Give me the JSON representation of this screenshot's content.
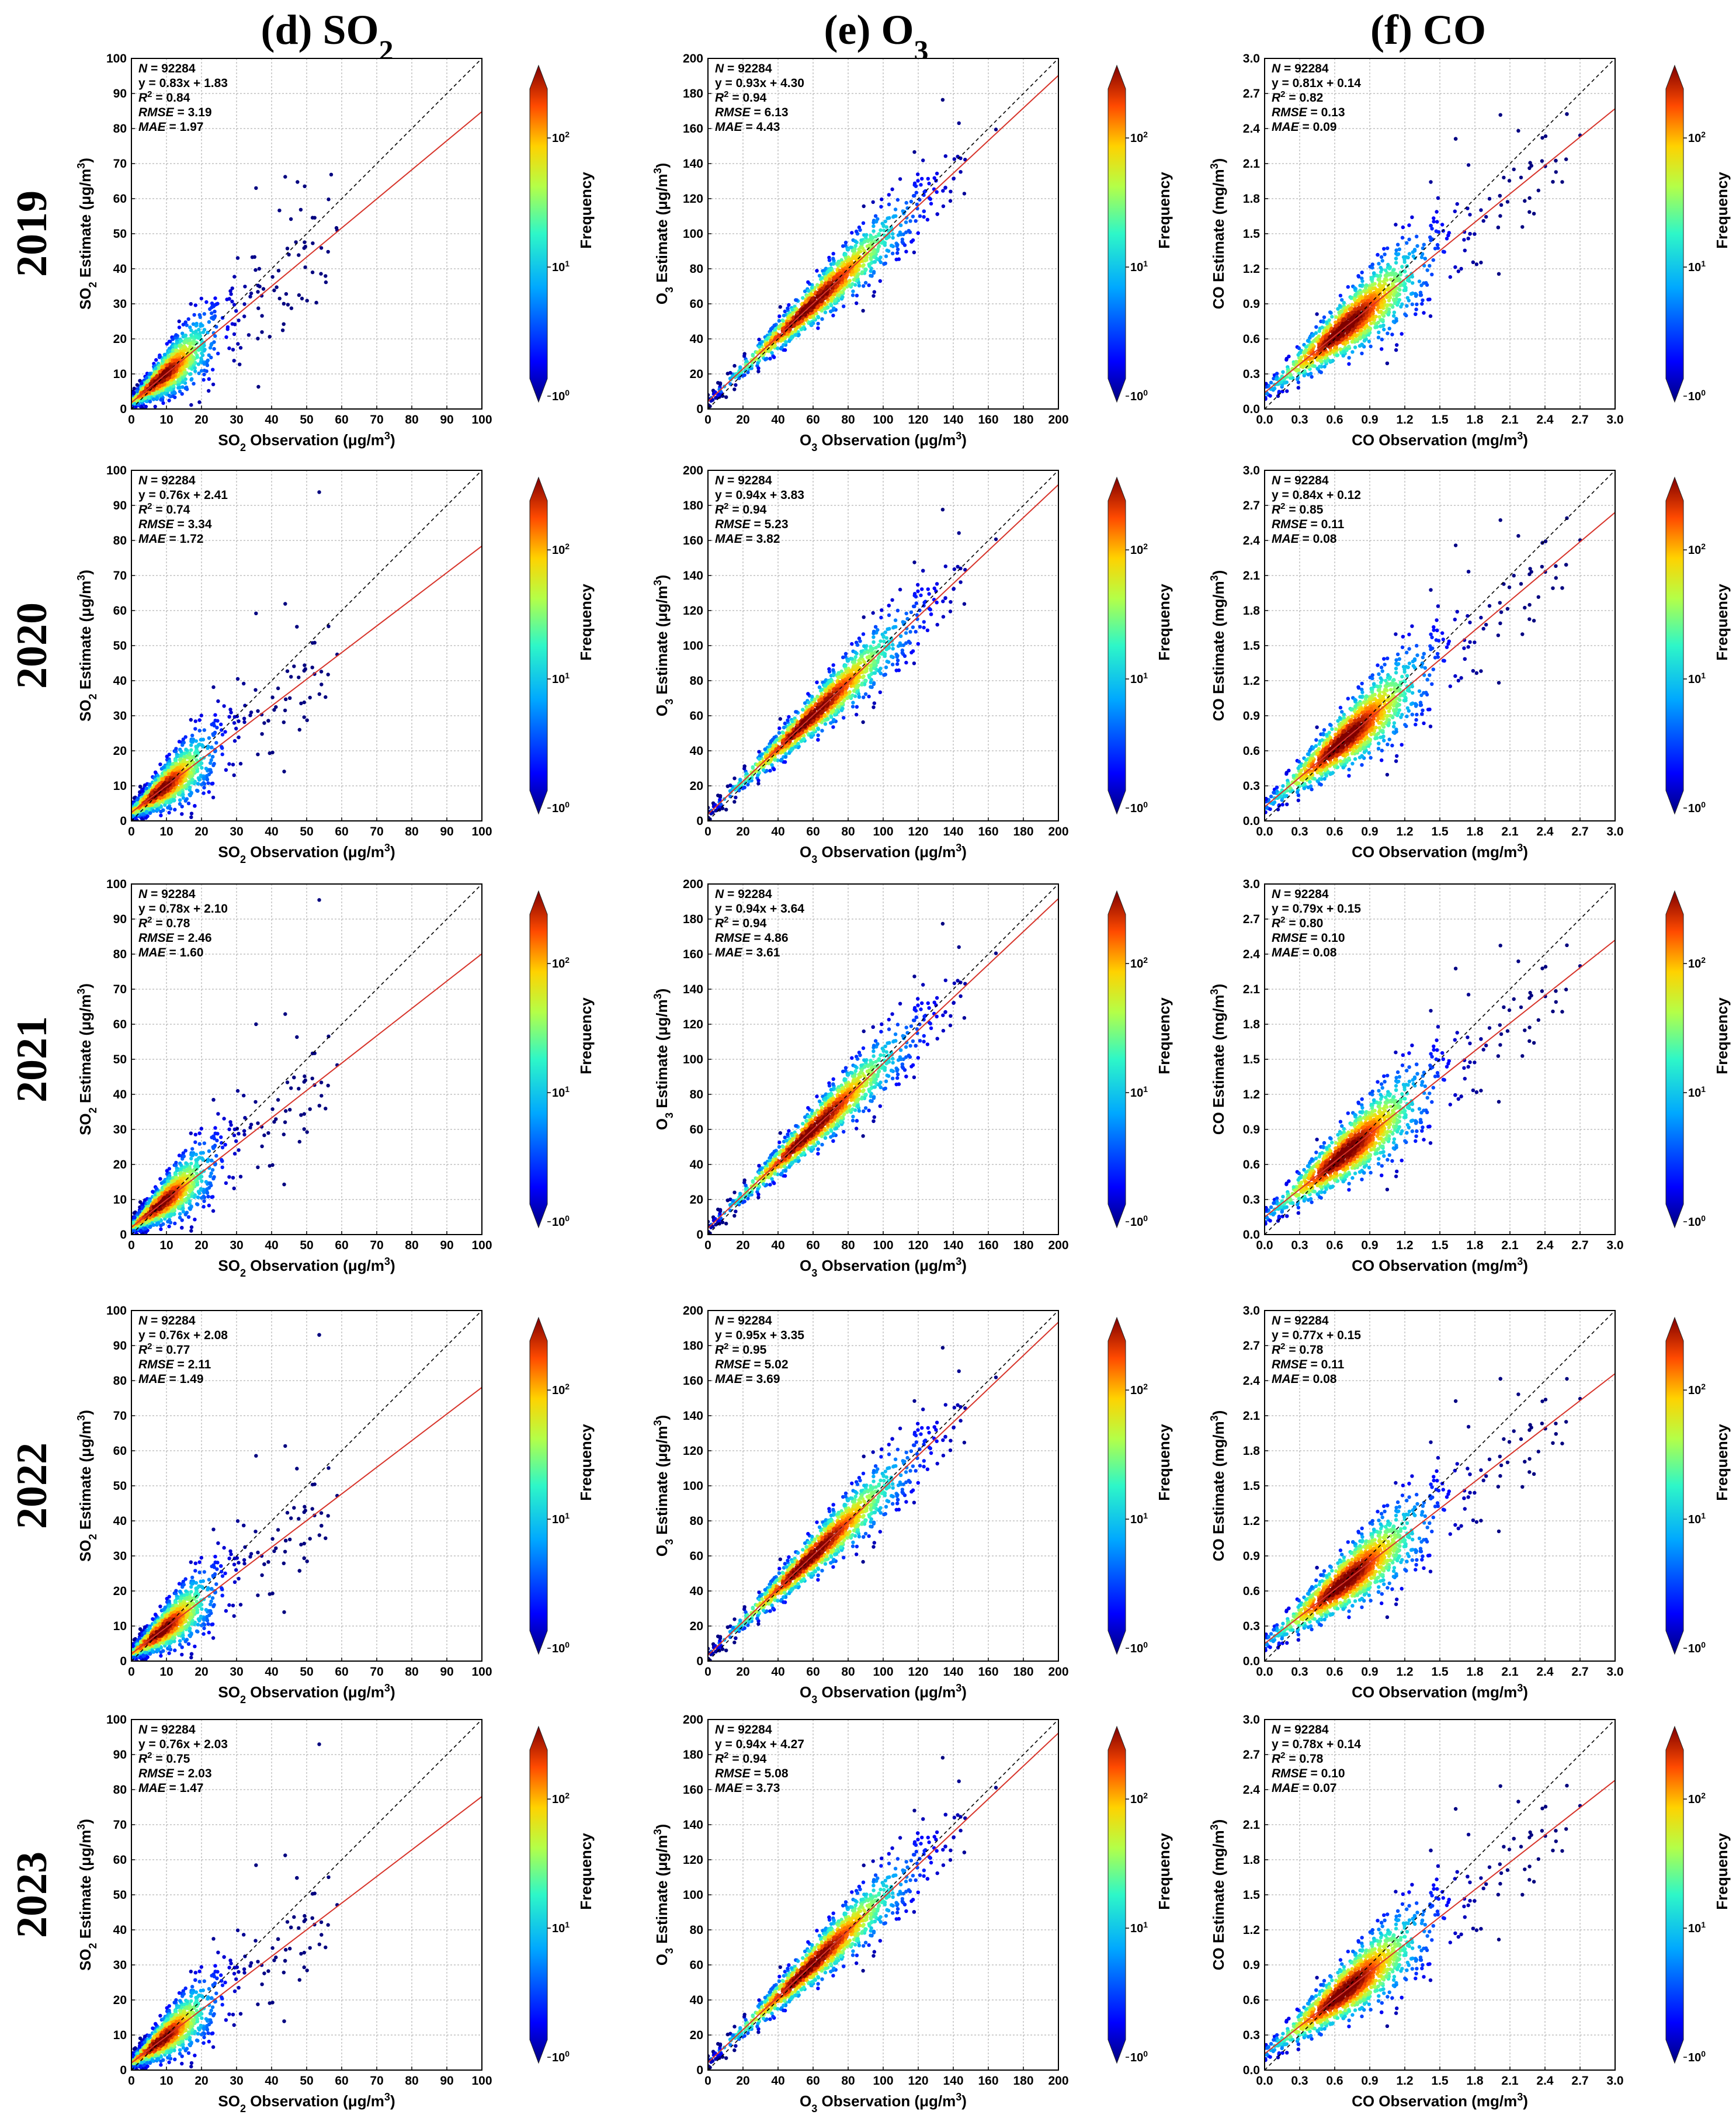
{
  "figure": {
    "column_titles": [
      {
        "prefix": "(d) SO",
        "sub": "2"
      },
      {
        "prefix": "(e) O",
        "sub": "3"
      },
      {
        "prefix": "(f) CO",
        "sub": ""
      }
    ],
    "years": [
      "2019",
      "2020",
      "2021",
      "2022",
      "2023"
    ],
    "colorbar_label": "Frequency",
    "colorbar_ticks": [
      {
        "base": "10",
        "exp": "0"
      },
      {
        "base": "10",
        "exp": "1"
      },
      {
        "base": "10",
        "exp": "2"
      }
    ],
    "colors": {
      "fit_line": "#d7342a",
      "identity_line": "#000000",
      "grid": "#a0a0a0"
    }
  },
  "chart_data": [
    {
      "type": "scatter",
      "pollutant": "SO2",
      "xlabel": {
        "pre": "SO",
        "sub": "2",
        "post": " Observation (μg/m",
        "sup": "3",
        "end": ")"
      },
      "ylabel": {
        "pre": "SO",
        "sub": "2",
        "post": " Estimate (μg/m",
        "sup": "3",
        "end": ")"
      },
      "xlim": [
        0,
        100
      ],
      "ylim": [
        0,
        100
      ],
      "ticks": [
        "0",
        "10",
        "20",
        "30",
        "40",
        "50",
        "60",
        "70",
        "80",
        "90",
        "100"
      ],
      "panels": [
        {
          "year": "2019",
          "N": "92284",
          "equation": "y = 0.83x + 1.83",
          "slope": 0.83,
          "intercept": 1.83,
          "R2": "0.84",
          "RMSE": "3.19",
          "MAE": "1.97",
          "colorbar_max": "10²"
        },
        {
          "year": "2020",
          "N": "92284",
          "equation": "y = 0.76x + 2.41",
          "slope": 0.76,
          "intercept": 2.41,
          "R2": "0.74",
          "RMSE": "3.34",
          "MAE": "1.72",
          "colorbar_max": "10²"
        },
        {
          "year": "2021",
          "N": "92284",
          "equation": "y = 0.78x + 2.10",
          "slope": 0.78,
          "intercept": 2.1,
          "R2": "0.78",
          "RMSE": "2.46",
          "MAE": "1.60",
          "colorbar_max": "10²"
        },
        {
          "year": "2022",
          "N": "92284",
          "equation": "y = 0.76x + 2.08",
          "slope": 0.76,
          "intercept": 2.08,
          "R2": "0.77",
          "RMSE": "2.11",
          "MAE": "1.49",
          "colorbar_max": "10²"
        },
        {
          "year": "2023",
          "N": "92284",
          "equation": "y = 0.76x + 2.03",
          "slope": 0.76,
          "intercept": 2.03,
          "R2": "0.75",
          "RMSE": "2.03",
          "MAE": "1.47",
          "colorbar_max": "10²"
        }
      ]
    },
    {
      "type": "scatter",
      "pollutant": "O3",
      "xlabel": {
        "pre": "O",
        "sub": "3",
        "post": " Observation (μg/m",
        "sup": "3",
        "end": ")"
      },
      "ylabel": {
        "pre": "O",
        "sub": "3",
        "post": " Estimate (μg/m",
        "sup": "3",
        "end": ")"
      },
      "xlim": [
        0,
        200
      ],
      "ylim": [
        0,
        200
      ],
      "ticks": [
        "0",
        "20",
        "40",
        "60",
        "80",
        "100",
        "120",
        "140",
        "160",
        "180",
        "200"
      ],
      "panels": [
        {
          "year": "2019",
          "N": "92284",
          "equation": "y = 0.93x + 4.30",
          "slope": 0.93,
          "intercept": 4.3,
          "R2": "0.94",
          "RMSE": "6.13",
          "MAE": "4.43"
        },
        {
          "year": "2020",
          "N": "92284",
          "equation": "y = 0.94x + 3.83",
          "slope": 0.94,
          "intercept": 3.83,
          "R2": "0.94",
          "RMSE": "5.23",
          "MAE": "3.82"
        },
        {
          "year": "2021",
          "N": "92284",
          "equation": "y = 0.94x + 3.64",
          "slope": 0.94,
          "intercept": 3.64,
          "R2": "0.94",
          "RMSE": "4.86",
          "MAE": "3.61"
        },
        {
          "year": "2022",
          "N": "92284",
          "equation": "y = 0.95x + 3.35",
          "slope": 0.95,
          "intercept": 3.35,
          "R2": "0.95",
          "RMSE": "5.02",
          "MAE": "3.69"
        },
        {
          "year": "2023",
          "N": "92284",
          "equation": "y = 0.94x + 4.27",
          "slope": 0.94,
          "intercept": 4.27,
          "R2": "0.94",
          "RMSE": "5.08",
          "MAE": "3.73"
        }
      ]
    },
    {
      "type": "scatter",
      "pollutant": "CO",
      "xlabel": {
        "pre": "CO",
        "sub": "",
        "post": " Observation (mg/m",
        "sup": "3",
        "end": ")"
      },
      "ylabel": {
        "pre": "CO",
        "sub": "",
        "post": " Estimate (mg/m",
        "sup": "3",
        "end": ")"
      },
      "xlim": [
        0,
        3.0
      ],
      "ylim": [
        0,
        3.0
      ],
      "ticks": [
        "0.0",
        "0.3",
        "0.6",
        "0.9",
        "1.2",
        "1.5",
        "1.8",
        "2.1",
        "2.4",
        "2.7",
        "3.0"
      ],
      "panels": [
        {
          "year": "2019",
          "N": "92284",
          "equation": "y = 0.81x + 0.14",
          "slope": 0.81,
          "intercept": 0.14,
          "R2": "0.82",
          "RMSE": "0.13",
          "MAE": "0.09"
        },
        {
          "year": "2020",
          "N": "92284",
          "equation": "y = 0.84x + 0.12",
          "slope": 0.84,
          "intercept": 0.12,
          "R2": "0.85",
          "RMSE": "0.11",
          "MAE": "0.08"
        },
        {
          "year": "2021",
          "N": "92284",
          "equation": "y = 0.79x + 0.15",
          "slope": 0.79,
          "intercept": 0.15,
          "R2": "0.80",
          "RMSE": "0.10",
          "MAE": "0.08"
        },
        {
          "year": "2022",
          "N": "92284",
          "equation": "y = 0.77x + 0.15",
          "slope": 0.77,
          "intercept": 0.15,
          "R2": "0.78",
          "RMSE": "0.11",
          "MAE": "0.08"
        },
        {
          "year": "2023",
          "N": "92284",
          "equation": "y = 0.78x + 0.14",
          "slope": 0.78,
          "intercept": 0.14,
          "R2": "0.78",
          "RMSE": "0.10",
          "MAE": "0.07"
        }
      ]
    }
  ]
}
